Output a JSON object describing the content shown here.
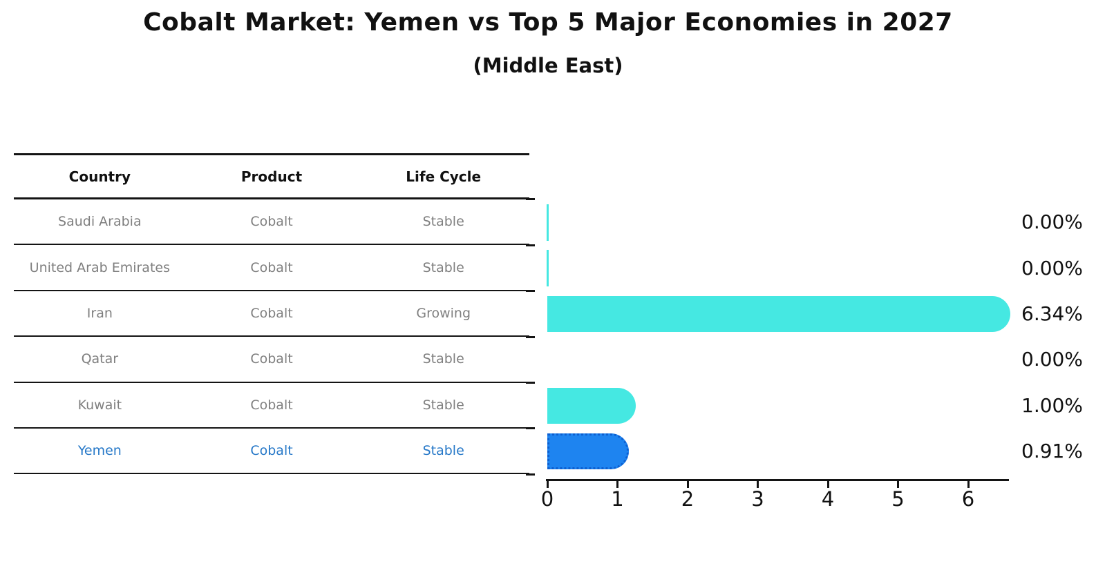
{
  "title": "Cobalt Market: Yemen vs Top 5 Major Economies in 2027",
  "subtitle": "(Middle East)",
  "table": {
    "headers": [
      "Country",
      "Product",
      "Life Cycle"
    ]
  },
  "chart_data": {
    "type": "bar",
    "orientation": "horizontal",
    "title": "Cobalt Market: Yemen vs Top 5 Major Economies in 2027",
    "subtitle": "(Middle East)",
    "xlabel": "",
    "ylabel": "",
    "xlim": [
      0,
      6.6
    ],
    "x_ticks": [
      0,
      1,
      2,
      3,
      4,
      5,
      6
    ],
    "grid": false,
    "legend": false,
    "categories": [
      "Saudi Arabia",
      "United Arab Emirates",
      "Iran",
      "Qatar",
      "Kuwait",
      "Yemen"
    ],
    "values": [
      0.0,
      0.0,
      6.34,
      0.0,
      1.0,
      0.91
    ],
    "rows": [
      {
        "country": "Saudi Arabia",
        "product": "Cobalt",
        "life_cycle": "Stable",
        "value": 0.0,
        "value_label": "0.00%",
        "highlight": false,
        "zero_sliver": true
      },
      {
        "country": "United Arab Emirates",
        "product": "Cobalt",
        "life_cycle": "Stable",
        "value": 0.0,
        "value_label": "0.00%",
        "highlight": false,
        "zero_sliver": true
      },
      {
        "country": "Iran",
        "product": "Cobalt",
        "life_cycle": "Growing",
        "value": 6.34,
        "value_label": "6.34%",
        "highlight": false,
        "zero_sliver": false
      },
      {
        "country": "Qatar",
        "product": "Cobalt",
        "life_cycle": "Stable",
        "value": 0.0,
        "value_label": "0.00%",
        "highlight": false,
        "zero_sliver": false
      },
      {
        "country": "Kuwait",
        "product": "Cobalt",
        "life_cycle": "Stable",
        "value": 1.0,
        "value_label": "1.00%",
        "highlight": false,
        "zero_sliver": false
      },
      {
        "country": "Yemen",
        "product": "Cobalt",
        "life_cycle": "Stable",
        "value": 0.91,
        "value_label": "0.91%",
        "highlight": true,
        "zero_sliver": false
      }
    ],
    "colors": {
      "bar": "#45E8E2",
      "highlight_bar": "#1E84F0",
      "highlight_border": "#0D5FD0",
      "highlight_text": "#2678C8",
      "row_text": "#7F7F7F",
      "axis": "#141414"
    }
  }
}
